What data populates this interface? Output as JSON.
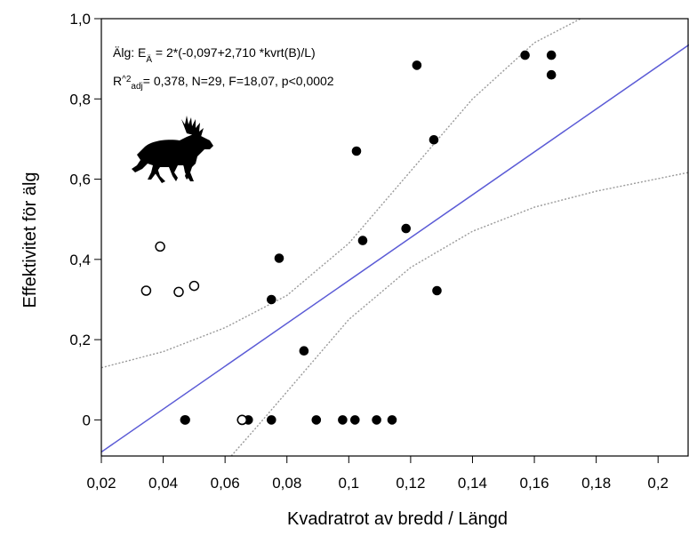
{
  "chart_data": {
    "type": "scatter",
    "xlabel": "Kvadratrot av bredd / Längd",
    "ylabel": "Effektivitet för älg",
    "xlim": [
      0.02,
      0.21
    ],
    "ylim": [
      -0.09,
      1.0
    ],
    "x_ticks": [
      0.02,
      0.04,
      0.06,
      0.08,
      0.1,
      0.12,
      0.14,
      0.16,
      0.18,
      0.2
    ],
    "x_tick_labels": [
      "0,02",
      "0,04",
      "0,06",
      "0,08",
      "0,1",
      "0,12",
      "0,14",
      "0,16",
      "0,18",
      "0,2"
    ],
    "y_ticks": [
      0,
      0.2,
      0.4,
      0.6,
      0.8,
      1.0
    ],
    "y_tick_labels": [
      "0",
      "0,2",
      "0,4",
      "0,6",
      "0,8",
      "1,0"
    ],
    "grid": false,
    "annotation": {
      "line1_prefix": "Älg:  E",
      "line1_sub": "Ä",
      "line1_suffix": " = 2*(-0,097+2,710 *kvrt(B)/L)",
      "line2_prefix": "R",
      "line2_sup": "^2",
      "line2_sub": "adj",
      "line2_suffix": "= 0,378, N=29, F=18,07, p<0,0002"
    },
    "series": [
      {
        "marker": "filled",
        "x": [
          0.047,
          0.0472,
          0.0675,
          0.075,
          0.0895,
          0.098,
          0.102,
          0.109,
          0.114,
          0.075,
          0.0775,
          0.0855,
          0.1025,
          0.1045,
          0.1185,
          0.1285,
          0.1275,
          0.122,
          0.157,
          0.1655,
          0.1655
        ],
        "y": [
          0.0,
          0.0,
          0.0,
          0.0,
          0.0,
          0.0,
          0.0,
          0.0,
          0.0,
          0.3,
          0.403,
          0.172,
          0.67,
          0.447,
          0.477,
          0.322,
          0.698,
          0.884,
          0.909,
          0.909,
          0.86
        ]
      },
      {
        "marker": "open",
        "x": [
          0.0345,
          0.039,
          0.045,
          0.05,
          0.0655,
          0.0655
        ],
        "y": [
          0.322,
          0.432,
          0.319,
          0.334,
          0.0,
          0.0
        ]
      }
    ],
    "fit_line": {
      "color": "#5b5bd6",
      "x": [
        0.02,
        0.21
      ],
      "y": [
        -0.08,
        0.935
      ]
    },
    "confidence_band_upper": {
      "color": "#9a9a9a",
      "x": [
        0.02,
        0.04,
        0.06,
        0.08,
        0.1,
        0.12,
        0.14,
        0.16,
        0.175
      ],
      "y": [
        0.13,
        0.17,
        0.23,
        0.31,
        0.44,
        0.62,
        0.8,
        0.94,
        1.0
      ]
    },
    "confidence_band_lower": {
      "color": "#9a9a9a",
      "x": [
        0.062,
        0.07,
        0.08,
        0.1,
        0.12,
        0.14,
        0.16,
        0.18,
        0.21
      ],
      "y": [
        -0.09,
        -0.02,
        0.07,
        0.25,
        0.38,
        0.47,
        0.53,
        0.57,
        0.617
      ]
    }
  },
  "moose": {
    "icon": "moose-icon",
    "color": "#000000"
  }
}
